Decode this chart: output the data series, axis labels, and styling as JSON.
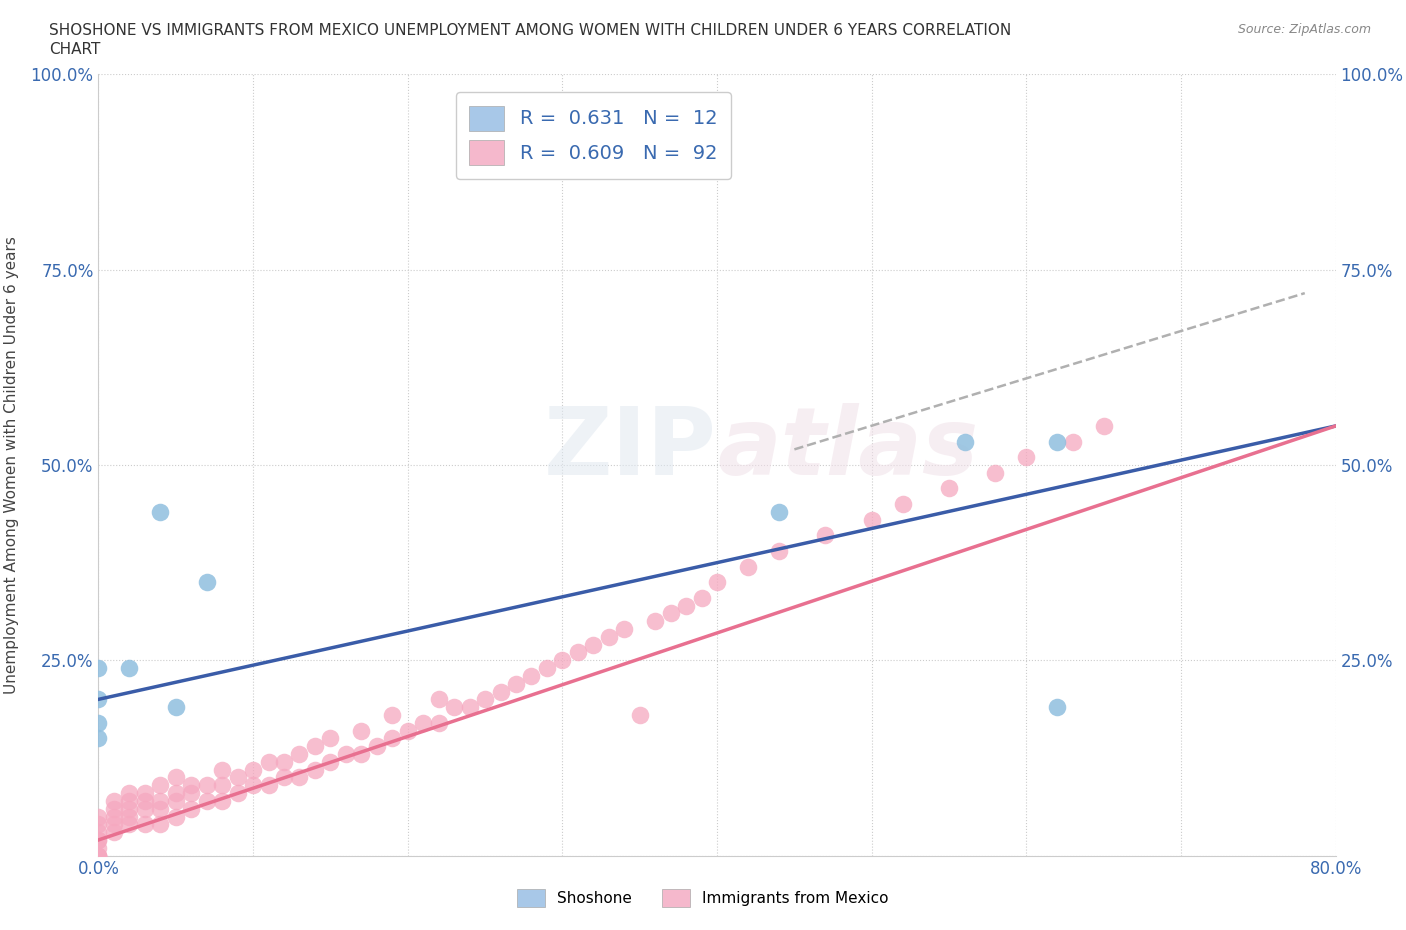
{
  "title_line1": "SHOSHONE VS IMMIGRANTS FROM MEXICO UNEMPLOYMENT AMONG WOMEN WITH CHILDREN UNDER 6 YEARS CORRELATION",
  "title_line2": "CHART",
  "source": "Source: ZipAtlas.com",
  "ylabel": "Unemployment Among Women with Children Under 6 years",
  "xlim": [
    0,
    0.8
  ],
  "ylim": [
    0,
    1.0
  ],
  "shoshone_color": "#90bfdf",
  "mexico_color": "#f5a8bf",
  "shoshone_line_color": "#3a5ca8",
  "mexico_line_color": "#e87090",
  "dashed_line_color": "#b0b0b0",
  "legend_entries": [
    {
      "label": "R =  0.631   N =  12",
      "facecolor": "#a8c8e8"
    },
    {
      "label": "R =  0.609   N =  92",
      "facecolor": "#f5b8cc"
    }
  ],
  "legend_label_shoshone": "Shoshone",
  "legend_label_mexico": "Immigrants from Mexico",
  "shoshone_x": [
    0.0,
    0.0,
    0.0,
    0.0,
    0.02,
    0.04,
    0.05,
    0.07,
    0.44,
    0.56,
    0.62,
    0.62
  ],
  "shoshone_y": [
    0.15,
    0.17,
    0.2,
    0.24,
    0.24,
    0.44,
    0.19,
    0.35,
    0.44,
    0.53,
    0.53,
    0.19
  ],
  "mexico_x": [
    0.0,
    0.0,
    0.0,
    0.0,
    0.0,
    0.0,
    0.0,
    0.0,
    0.0,
    0.0,
    0.01,
    0.01,
    0.01,
    0.01,
    0.01,
    0.02,
    0.02,
    0.02,
    0.02,
    0.02,
    0.03,
    0.03,
    0.03,
    0.03,
    0.04,
    0.04,
    0.04,
    0.04,
    0.05,
    0.05,
    0.05,
    0.05,
    0.06,
    0.06,
    0.06,
    0.07,
    0.07,
    0.08,
    0.08,
    0.08,
    0.09,
    0.09,
    0.1,
    0.1,
    0.11,
    0.11,
    0.12,
    0.12,
    0.13,
    0.13,
    0.14,
    0.14,
    0.15,
    0.15,
    0.16,
    0.17,
    0.17,
    0.18,
    0.19,
    0.19,
    0.2,
    0.21,
    0.22,
    0.22,
    0.23,
    0.24,
    0.25,
    0.26,
    0.27,
    0.28,
    0.29,
    0.3,
    0.31,
    0.32,
    0.33,
    0.34,
    0.35,
    0.36,
    0.37,
    0.38,
    0.39,
    0.4,
    0.42,
    0.44,
    0.47,
    0.5,
    0.52,
    0.55,
    0.58,
    0.6,
    0.63,
    0.65
  ],
  "mexico_y": [
    0.0,
    0.0,
    0.0,
    0.0,
    0.01,
    0.02,
    0.02,
    0.03,
    0.04,
    0.05,
    0.03,
    0.04,
    0.05,
    0.06,
    0.07,
    0.04,
    0.05,
    0.06,
    0.07,
    0.08,
    0.04,
    0.06,
    0.07,
    0.08,
    0.04,
    0.06,
    0.07,
    0.09,
    0.05,
    0.07,
    0.08,
    0.1,
    0.06,
    0.08,
    0.09,
    0.07,
    0.09,
    0.07,
    0.09,
    0.11,
    0.08,
    0.1,
    0.09,
    0.11,
    0.09,
    0.12,
    0.1,
    0.12,
    0.1,
    0.13,
    0.11,
    0.14,
    0.12,
    0.15,
    0.13,
    0.13,
    0.16,
    0.14,
    0.15,
    0.18,
    0.16,
    0.17,
    0.17,
    0.2,
    0.19,
    0.19,
    0.2,
    0.21,
    0.22,
    0.23,
    0.24,
    0.25,
    0.26,
    0.27,
    0.28,
    0.29,
    0.18,
    0.3,
    0.31,
    0.32,
    0.33,
    0.35,
    0.37,
    0.39,
    0.41,
    0.43,
    0.45,
    0.47,
    0.49,
    0.51,
    0.53,
    0.55
  ],
  "shoshone_line_x": [
    0.0,
    0.8
  ],
  "shoshone_line_y": [
    0.2,
    0.55
  ],
  "mexico_line_x": [
    0.0,
    0.8
  ],
  "mexico_line_y": [
    0.02,
    0.55
  ],
  "dashed_line_x": [
    0.45,
    0.78
  ],
  "dashed_line_y": [
    0.52,
    0.72
  ]
}
